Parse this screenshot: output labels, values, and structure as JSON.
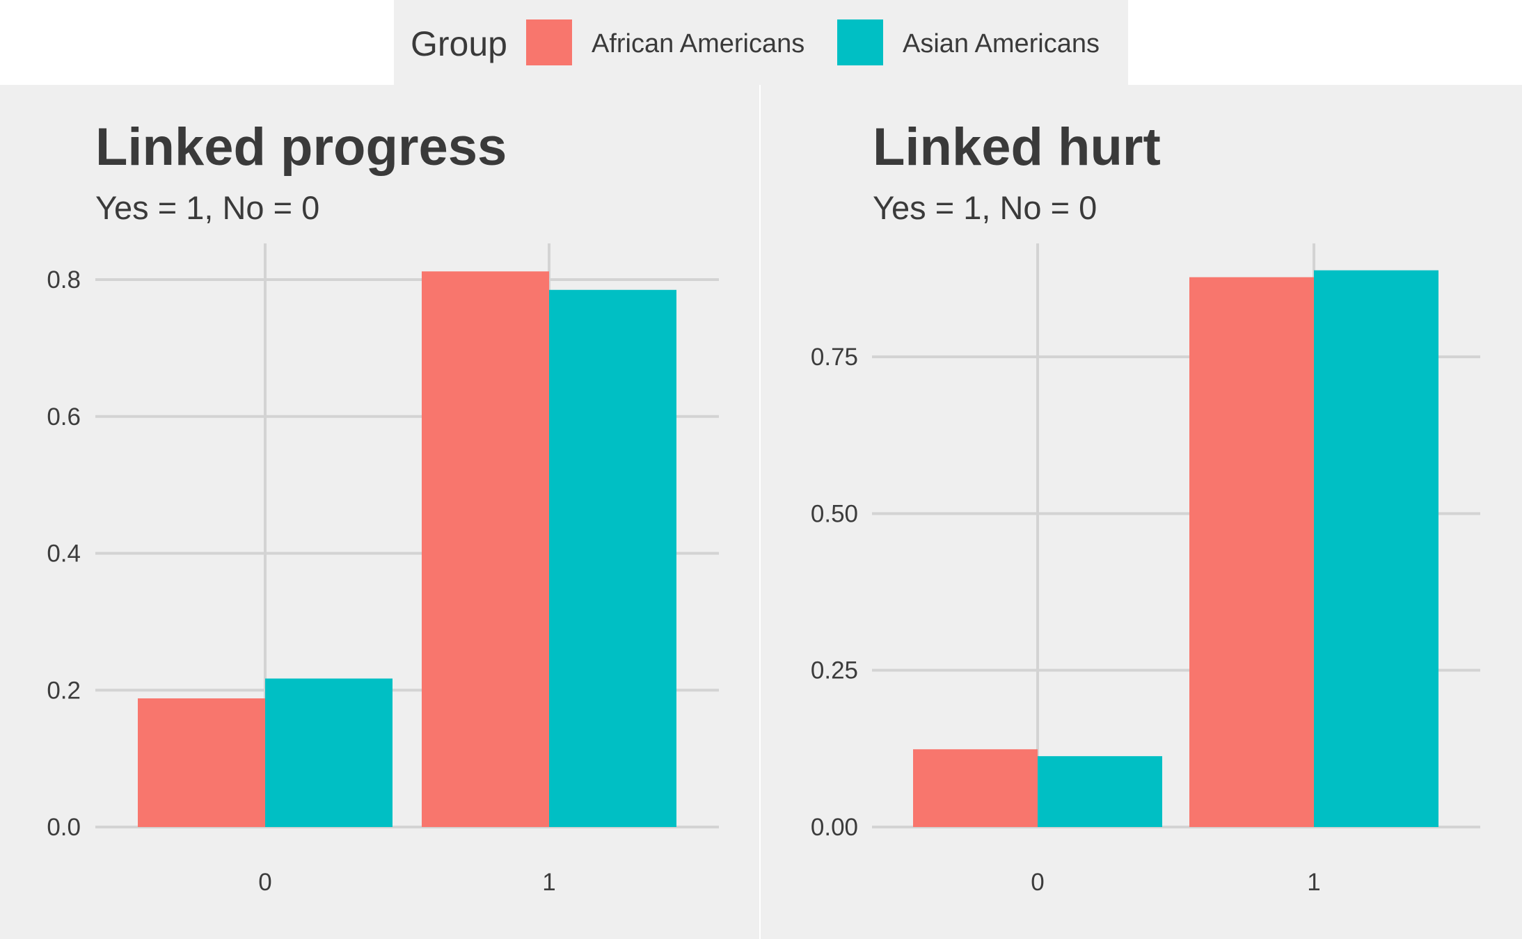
{
  "legend": {
    "title": "Group",
    "items": [
      {
        "label": "African Americans",
        "color": "#F8766D"
      },
      {
        "label": "Asian Americans",
        "color": "#00BFC4"
      }
    ]
  },
  "colors": {
    "panel_background": "#efefef",
    "gridline": "#d3d3d3",
    "page_background": "#ffffff"
  },
  "chart_data": [
    {
      "type": "bar",
      "title": "Linked progress",
      "subtitle": "Yes = 1, No = 0",
      "xlabel": "",
      "ylabel": "",
      "categories": [
        "0",
        "1"
      ],
      "series": [
        {
          "name": "African Americans",
          "values": [
            0.188,
            0.812
          ]
        },
        {
          "name": "Asian Americans",
          "values": [
            0.217,
            0.785
          ]
        }
      ],
      "yticks": [
        0.0,
        0.2,
        0.4,
        0.6,
        0.8
      ],
      "ytick_labels": [
        "0.0",
        "0.2",
        "0.4",
        "0.6",
        "0.8"
      ],
      "ylim": [
        0,
        0.85
      ],
      "grid": true
    },
    {
      "type": "bar",
      "title": "Linked hurt",
      "subtitle": "Yes = 1, No = 0",
      "xlabel": "",
      "ylabel": "",
      "categories": [
        "0",
        "1"
      ],
      "series": [
        {
          "name": "African Americans",
          "values": [
            0.124,
            0.877
          ]
        },
        {
          "name": "Asian Americans",
          "values": [
            0.113,
            0.888
          ]
        }
      ],
      "yticks": [
        0.0,
        0.25,
        0.5,
        0.75
      ],
      "ytick_labels": [
        "0.00",
        "0.25",
        "0.50",
        "0.75"
      ],
      "ylim": [
        0,
        0.93
      ],
      "grid": true
    }
  ]
}
